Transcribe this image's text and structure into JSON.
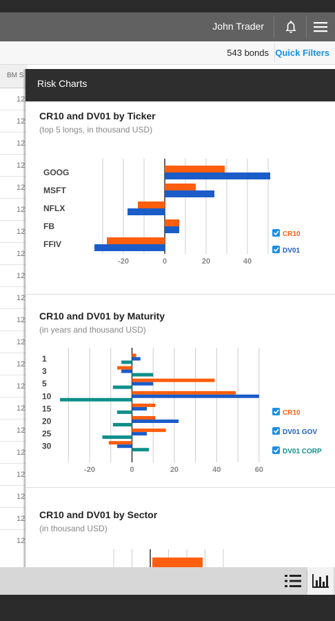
{
  "header": {
    "user_name": "John Trader",
    "notifications_icon": "bell-icon",
    "menu_icon": "hamburger-menu-icon"
  },
  "subbar": {
    "bond_count": "543 bonds",
    "quick_filters": "Quick Filters"
  },
  "grid": {
    "column_header": "BM S",
    "row_value": "12"
  },
  "panel": {
    "title": "Risk Charts"
  },
  "colors": {
    "cr10": "#ff5e0e",
    "dv01": "#1a5cc8",
    "dv01_corp": "#0f8f8a"
  },
  "chart_data": [
    {
      "type": "bar",
      "orientation": "horizontal",
      "title": "CR10 and DV01 by Ticker",
      "subtitle": "(top 5 longs, in thousand USD)",
      "categories": [
        "GOOG",
        "MSFT",
        "NFLX",
        "FB",
        "FFIV"
      ],
      "series": [
        {
          "name": "CR10",
          "values": [
            29,
            15,
            -13,
            7,
            -28
          ]
        },
        {
          "name": "DV01",
          "values": [
            51,
            24,
            -18,
            7,
            -34
          ]
        }
      ],
      "xlim": [
        -34,
        52
      ],
      "xticks": [
        -20,
        0,
        20,
        40
      ],
      "grid": true,
      "legend": "right"
    },
    {
      "type": "bar",
      "orientation": "horizontal",
      "title": "CR10 and DV01 by Maturity",
      "subtitle": "(in years and thousand USD)",
      "categories": [
        "1",
        "3",
        "5",
        "10",
        "15",
        "20",
        "25",
        "30"
      ],
      "series": [
        {
          "name": "CR10",
          "values": [
            2,
            -7,
            39,
            49,
            11,
            11,
            16,
            -11
          ]
        },
        {
          "name": "DV01 GOV",
          "values": [
            4,
            -5,
            10,
            60,
            7,
            22,
            7,
            -7
          ]
        },
        {
          "name": "DV01 CORP",
          "values": [
            -5,
            10,
            -9,
            -34,
            -7,
            -9,
            -14,
            8
          ]
        }
      ],
      "xlim": [
        -34,
        62
      ],
      "xticks": [
        -20,
        0,
        20,
        40,
        60
      ],
      "grid": true,
      "legend": "right"
    },
    {
      "type": "bar",
      "orientation": "horizontal",
      "title": "CR10 and DV01 by Sector",
      "subtitle": "(in thousand USD)",
      "categories": [],
      "series": [
        {
          "name": "CR10",
          "values": []
        }
      ],
      "grid": true
    }
  ],
  "bottombar": {
    "list_view_icon": "list-view-icon",
    "chart_view_icon": "bar-chart-icon"
  }
}
